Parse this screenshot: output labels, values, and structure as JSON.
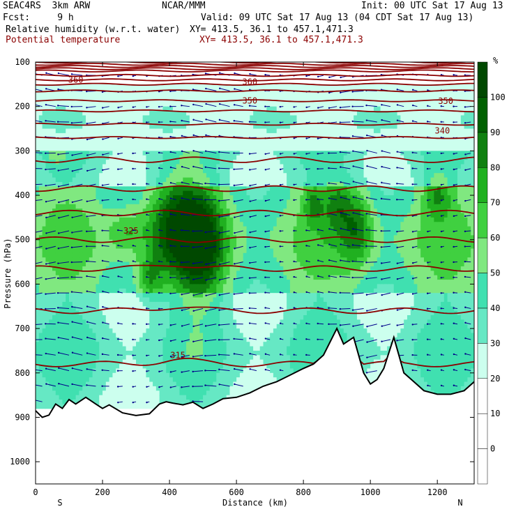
{
  "header": {
    "model": "SEAC4RS  3km ARW",
    "org": "NCAR/MMM",
    "init": "Init: 00 UTC Sat 17 Aug 13",
    "fcst": "Fcst:     9 h",
    "valid": "Valid: 09 UTC Sat 17 Aug 13 (04 CDT Sat 17 Aug 13)",
    "field1": "Relative humidity (w.r.t. water)",
    "xy1": "XY= 413.5, 36.1 to 457.1,471.3",
    "field2": "Potential temperature",
    "xy2": "XY= 413.5, 36.1 to 457.1,471.3"
  },
  "chart_data": {
    "type": "heatmap",
    "xlabel": "Distance (km)",
    "ylabel": "Pressure (hPa)",
    "xlim": [
      0,
      1310
    ],
    "ylim": [
      1050,
      100
    ],
    "x_ticks": [
      0,
      200,
      400,
      600,
      800,
      1000,
      1200
    ],
    "y_ticks": [
      100,
      200,
      300,
      400,
      500,
      600,
      700,
      800,
      900,
      1000
    ],
    "x_end_labels": {
      "left": "S",
      "right": "N"
    },
    "colorbar": {
      "unit": "%",
      "levels": [
        0,
        10,
        20,
        30,
        40,
        50,
        60,
        70,
        80,
        90,
        100
      ],
      "colors": [
        "#ffffff",
        "#ffffff",
        "#ffffff",
        "#ccffee",
        "#66e8c4",
        "#40e0b0",
        "#80e880",
        "#40d040",
        "#20b020",
        "#108010",
        "#006000",
        "#004800"
      ]
    },
    "theta_contour_labels": [
      {
        "label": "360",
        "x": 120,
        "p": 140
      },
      {
        "label": "360",
        "x": 640,
        "p": 145
      },
      {
        "label": "350",
        "x": 640,
        "p": 187
      },
      {
        "label": "350",
        "x": 1225,
        "p": 188
      },
      {
        "label": "340",
        "x": 1215,
        "p": 255
      },
      {
        "label": "325",
        "x": 285,
        "p": 480
      },
      {
        "label": "315",
        "x": 425,
        "p": 760
      }
    ],
    "terrain_pressure": [
      [
        0,
        885
      ],
      [
        20,
        900
      ],
      [
        40,
        895
      ],
      [
        60,
        870
      ],
      [
        80,
        880
      ],
      [
        100,
        860
      ],
      [
        120,
        870
      ],
      [
        150,
        855
      ],
      [
        180,
        870
      ],
      [
        200,
        880
      ],
      [
        220,
        872
      ],
      [
        260,
        890
      ],
      [
        300,
        896
      ],
      [
        340,
        892
      ],
      [
        370,
        870
      ],
      [
        390,
        865
      ],
      [
        410,
        868
      ],
      [
        440,
        872
      ],
      [
        470,
        866
      ],
      [
        500,
        880
      ],
      [
        530,
        870
      ],
      [
        560,
        858
      ],
      [
        600,
        855
      ],
      [
        640,
        845
      ],
      [
        680,
        830
      ],
      [
        720,
        820
      ],
      [
        760,
        805
      ],
      [
        800,
        790
      ],
      [
        830,
        780
      ],
      [
        860,
        760
      ],
      [
        900,
        700
      ],
      [
        920,
        735
      ],
      [
        950,
        720
      ],
      [
        980,
        800
      ],
      [
        1000,
        825
      ],
      [
        1020,
        815
      ],
      [
        1040,
        790
      ],
      [
        1070,
        720
      ],
      [
        1100,
        800
      ],
      [
        1130,
        820
      ],
      [
        1160,
        840
      ],
      [
        1200,
        848
      ],
      [
        1240,
        848
      ],
      [
        1280,
        840
      ],
      [
        1310,
        820
      ]
    ]
  }
}
